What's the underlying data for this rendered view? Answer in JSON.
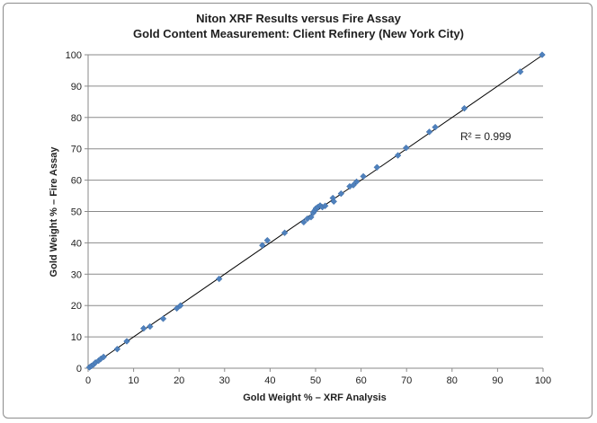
{
  "chart_data": {
    "type": "scatter",
    "title": "Niton XRF Results versus Fire Assay",
    "subtitle": "Gold Content Measurement: Client Refinery (New York City)",
    "xlabel": "Gold Weight % – XRF Analysis",
    "ylabel": "Gold Weight % – Fire Assay",
    "xlim": [
      0,
      100
    ],
    "ylim": [
      0,
      100
    ],
    "xticks": [
      0,
      10,
      20,
      30,
      40,
      50,
      60,
      70,
      80,
      90,
      100
    ],
    "yticks": [
      0,
      10,
      20,
      30,
      40,
      50,
      60,
      70,
      80,
      90,
      100
    ],
    "grid": "horizontal",
    "legend": "none",
    "marker_color": "#4f81bd",
    "trendline": {
      "type": "linear",
      "x": [
        0,
        100
      ],
      "y": [
        0,
        100
      ],
      "color": "#000000"
    },
    "annotation": "R² = 0.999",
    "x": [
      0.3,
      0.7,
      1.2,
      1.6,
      2.3,
      2.8,
      3.4,
      6.4,
      8.5,
      12.2,
      13.6,
      16.5,
      19.5,
      20.3,
      28.8,
      38.3,
      39.4,
      43.2,
      47.4,
      48.2,
      49.0,
      49.5,
      49.8,
      50.1,
      50.5,
      51.0,
      51.5,
      52.1,
      53.8,
      54.0,
      55.6,
      57.5,
      58.3,
      59.0,
      60.5,
      63.5,
      68.1,
      69.9,
      75.0,
      76.3,
      82.7,
      95.0,
      99.8
    ],
    "y": [
      0.3,
      0.7,
      1.2,
      1.8,
      2.4,
      3.0,
      3.6,
      6.1,
      8.6,
      12.7,
      13.3,
      15.8,
      19.1,
      20.0,
      28.5,
      39.2,
      40.8,
      43.2,
      46.6,
      47.7,
      48.2,
      49.6,
      50.3,
      51.0,
      51.4,
      51.9,
      51.4,
      51.8,
      54.3,
      53.2,
      55.7,
      58.0,
      58.4,
      59.5,
      61.2,
      64.1,
      67.9,
      70.3,
      75.4,
      76.9,
      82.9,
      94.6,
      100.0
    ]
  }
}
